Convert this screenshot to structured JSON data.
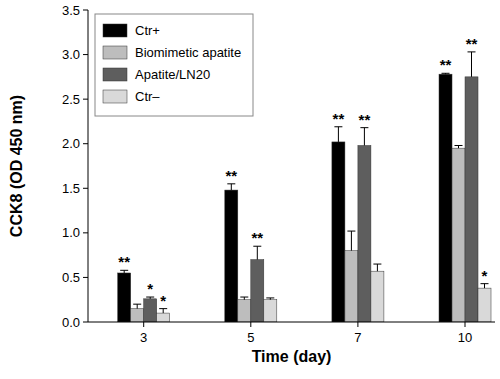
{
  "chart_data": {
    "type": "bar",
    "x_label": "Time (day)",
    "y_label": "CCK8 (OD 450 nm)",
    "categories": [
      "3",
      "5",
      "7",
      "10"
    ],
    "ylim": [
      0,
      3.5
    ],
    "yticks": [
      {
        "value": 0,
        "label": "0.0"
      },
      {
        "value": 0.5,
        "label": "0.5"
      },
      {
        "value": 1,
        "label": "1.0"
      },
      {
        "value": 1.5,
        "label": "1.5"
      },
      {
        "value": 2,
        "label": "2.0"
      },
      {
        "value": 2.5,
        "label": "2.5"
      },
      {
        "value": 3,
        "label": "3.0"
      },
      {
        "value": 3.5,
        "label": "3.5"
      }
    ],
    "grid": false,
    "legend": "upper left",
    "series": [
      {
        "name": "Ctr+",
        "color": "#000000",
        "values": [
          0.55,
          1.48,
          2.02,
          2.78
        ],
        "errors": [
          0.03,
          0.07,
          0.17,
          0.01
        ],
        "significance": [
          "**",
          "**",
          "**",
          "**"
        ]
      },
      {
        "name": "Biomimetic apatite",
        "color": "#bdbdbd",
        "values": [
          0.15,
          0.25,
          0.8,
          1.95
        ],
        "errors": [
          0.05,
          0.03,
          0.22,
          0.03
        ],
        "significance": [
          null,
          null,
          null,
          null
        ]
      },
      {
        "name": "Apatite/LN20",
        "color": "#5e5e5e",
        "values": [
          0.26,
          0.7,
          1.98,
          2.75
        ],
        "errors": [
          0.02,
          0.15,
          0.2,
          0.28
        ],
        "significance": [
          "*",
          "**",
          "**",
          "**"
        ]
      },
      {
        "name": "Ctr–",
        "color": "#d9d9d9",
        "values": [
          0.1,
          0.25,
          0.57,
          0.38
        ],
        "errors": [
          0.05,
          0.02,
          0.08,
          0.05
        ],
        "significance": [
          "*",
          null,
          null,
          "*"
        ]
      }
    ]
  }
}
